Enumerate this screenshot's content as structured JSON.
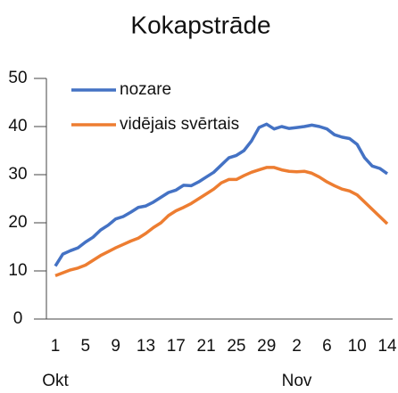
{
  "chart_data": {
    "type": "line",
    "title": "Kokapstrāde",
    "categories": [
      "1",
      null,
      null,
      null,
      "5",
      null,
      null,
      null,
      "9",
      null,
      null,
      null,
      "13",
      null,
      null,
      null,
      "17",
      null,
      null,
      null,
      "21",
      null,
      null,
      null,
      "25",
      null,
      null,
      null,
      "29",
      null,
      null,
      null,
      "2",
      null,
      null,
      null,
      "6",
      null,
      null,
      null,
      "10",
      null,
      null,
      null,
      "14"
    ],
    "groups": [
      {
        "label": "Okt",
        "index": 0
      },
      {
        "label": "Nov",
        "index": 32
      }
    ],
    "series": [
      {
        "name": "nozare",
        "color": "#4472c4",
        "values": [
          11,
          13.5,
          14.2,
          14.8,
          16,
          17,
          18.5,
          19.5,
          20.8,
          21.3,
          22.2,
          23.2,
          23.5,
          24.3,
          25.3,
          26.3,
          26.8,
          27.8,
          27.7,
          28.5,
          29.5,
          30.5,
          32,
          33.5,
          34,
          35,
          37,
          39.8,
          40.5,
          39.5,
          40,
          39.6,
          39.8,
          40,
          40.3,
          40,
          39.5,
          38.3,
          37.8,
          37.5,
          36.3,
          33.5,
          31.8,
          31.3,
          30.2
        ]
      },
      {
        "name": "vidējais svērtais",
        "color": "#ed7d31",
        "values": [
          9,
          9.6,
          10.2,
          10.6,
          11.2,
          12.2,
          13.2,
          14,
          14.8,
          15.5,
          16.2,
          16.8,
          17.8,
          19,
          20,
          21.5,
          22.5,
          23.2,
          24,
          25,
          26,
          27,
          28.3,
          29,
          29,
          29.8,
          30.5,
          31,
          31.5,
          31.5,
          31,
          30.7,
          30.6,
          30.7,
          30.3,
          29.5,
          28.5,
          27.7,
          27,
          26.6,
          25.8,
          24.3,
          22.8,
          21.3,
          19.8
        ]
      }
    ],
    "ylim": [
      0,
      50
    ],
    "yticks": [
      0,
      10,
      20,
      30,
      40,
      50
    ],
    "legend": "upper left"
  }
}
